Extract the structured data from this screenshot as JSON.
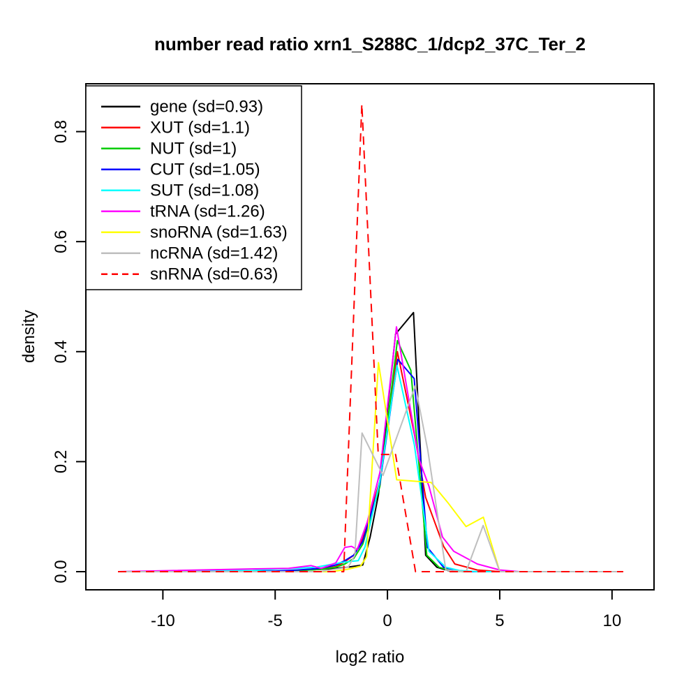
{
  "figure": {
    "background_color": "#FFFFFF",
    "title": "number read ratio xrn1_S288C_1/dcp2_37C_Ter_2",
    "xlabel": "log2 ratio",
    "ylabel": "density"
  },
  "chart_data": {
    "type": "line",
    "title": "number read ratio xrn1_S288C_1/dcp2_37C_Ter_2",
    "xlabel": "log2 ratio",
    "ylabel": "density",
    "grid": false,
    "legend_position": "top-left",
    "xlim": [
      -13.43,
      11.87
    ],
    "ylim": [
      -0.033,
      0.887
    ],
    "x_ticks": [
      {
        "value": -10,
        "label": "-10"
      },
      {
        "value": -5,
        "label": "-5"
      },
      {
        "value": 0,
        "label": "0"
      },
      {
        "value": 5,
        "label": "5"
      },
      {
        "value": 10,
        "label": "10"
      }
    ],
    "y_ticks": [
      {
        "value": 0.0,
        "label": "0.0"
      },
      {
        "value": 0.2,
        "label": "0.2"
      },
      {
        "value": 0.4,
        "label": "0.4"
      },
      {
        "value": 0.6,
        "label": "0.6"
      },
      {
        "value": 0.8,
        "label": "0.8"
      }
    ],
    "series": [
      {
        "name": "gene",
        "legend": "gene (sd=0.93)",
        "sd": 0.93,
        "color": "#000000",
        "dashed": false,
        "points": [
          [
            -12,
            0
          ],
          [
            -5,
            0
          ],
          [
            -4,
            0.002
          ],
          [
            -3,
            0.004
          ],
          [
            -2.3,
            0.006
          ],
          [
            -1.8,
            0.008
          ],
          [
            -1.1,
            0.012
          ],
          [
            -0.77,
            0.063
          ],
          [
            -0.4,
            0.14
          ],
          [
            0.36,
            0.432
          ],
          [
            1.16,
            0.471
          ],
          [
            1.7,
            0.03
          ],
          [
            2.2,
            0.008
          ],
          [
            2.7,
            0.002
          ],
          [
            3.5,
            0
          ],
          [
            10.5,
            0
          ]
        ]
      },
      {
        "name": "XUT",
        "legend": "XUT (sd=1.1)",
        "sd": 1.1,
        "color": "#FF0000",
        "dashed": false,
        "points": [
          [
            -12,
            0
          ],
          [
            -5,
            0
          ],
          [
            -4,
            0.002
          ],
          [
            -3,
            0.005
          ],
          [
            -2.3,
            0.009
          ],
          [
            -1.9,
            0.018
          ],
          [
            -1.5,
            0.03
          ],
          [
            -1.1,
            0.06
          ],
          [
            -0.34,
            0.165
          ],
          [
            0.44,
            0.4
          ],
          [
            1.2,
            0.25
          ],
          [
            1.7,
            0.135
          ],
          [
            2.5,
            0.046
          ],
          [
            3,
            0.014
          ],
          [
            4,
            0.003
          ],
          [
            5,
            0
          ],
          [
            10.5,
            0
          ]
        ]
      },
      {
        "name": "NUT",
        "legend": "NUT (sd=1)",
        "sd": 1,
        "color": "#00CD00",
        "dashed": false,
        "points": [
          [
            -12,
            0
          ],
          [
            -5,
            0
          ],
          [
            -4,
            0.002
          ],
          [
            -3,
            0.004
          ],
          [
            -2.3,
            0.008
          ],
          [
            -1.9,
            0.014
          ],
          [
            -1.5,
            0.024
          ],
          [
            -1.1,
            0.05
          ],
          [
            -0.34,
            0.155
          ],
          [
            0.44,
            0.42
          ],
          [
            1.04,
            0.366
          ],
          [
            1.75,
            0.03
          ],
          [
            2.3,
            0.008
          ],
          [
            2.8,
            0.002
          ],
          [
            3.5,
            0
          ],
          [
            10.5,
            0
          ]
        ]
      },
      {
        "name": "CUT",
        "legend": "CUT (sd=1.05)",
        "sd": 1.05,
        "color": "#0000FF",
        "dashed": false,
        "points": [
          [
            -12,
            0
          ],
          [
            -5,
            0.001
          ],
          [
            -4,
            0.003
          ],
          [
            -3,
            0.006
          ],
          [
            -2.3,
            0.012
          ],
          [
            -1.9,
            0.02
          ],
          [
            -1.5,
            0.03
          ],
          [
            -1.1,
            0.055
          ],
          [
            -0.34,
            0.16
          ],
          [
            0.46,
            0.386
          ],
          [
            1.19,
            0.351
          ],
          [
            1.78,
            0.044
          ],
          [
            2.5,
            0.008
          ],
          [
            3.1,
            0.002
          ],
          [
            3.8,
            0
          ],
          [
            10.5,
            0
          ]
        ]
      },
      {
        "name": "SUT",
        "legend": "SUT (sd=1.08)",
        "sd": 1.08,
        "color": "#00FFFF",
        "dashed": false,
        "points": [
          [
            -12,
            0
          ],
          [
            -6,
            0.002
          ],
          [
            -4.7,
            0.005
          ],
          [
            -3.2,
            0.008
          ],
          [
            -2,
            0.017
          ],
          [
            -1.3,
            0.02
          ],
          [
            -1,
            0.045
          ],
          [
            -0.34,
            0.165
          ],
          [
            0.42,
            0.375
          ],
          [
            1.2,
            0.23
          ],
          [
            1.85,
            0.037
          ],
          [
            2.6,
            0.008
          ],
          [
            3.2,
            0.002
          ],
          [
            4,
            0
          ],
          [
            10.5,
            0
          ]
        ]
      },
      {
        "name": "tRNA",
        "legend": "tRNA (sd=1.26)",
        "sd": 1.26,
        "color": "#FF00FF",
        "dashed": false,
        "points": [
          [
            -12,
            0
          ],
          [
            -6.1,
            0.005
          ],
          [
            -4.4,
            0.006
          ],
          [
            -3.4,
            0.011
          ],
          [
            -2.95,
            0.006
          ],
          [
            -2.3,
            0.016
          ],
          [
            -1.9,
            0.044
          ],
          [
            -1.6,
            0.046
          ],
          [
            -1.35,
            0.04
          ],
          [
            -0.9,
            0.09
          ],
          [
            -0.34,
            0.18
          ],
          [
            0.4,
            0.445
          ],
          [
            1.4,
            0.205
          ],
          [
            1.85,
            0.155
          ],
          [
            2.45,
            0.063
          ],
          [
            2.95,
            0.037
          ],
          [
            4,
            0.014
          ],
          [
            5,
            0.003
          ],
          [
            5.9,
            0
          ],
          [
            10.5,
            0
          ]
        ]
      },
      {
        "name": "snoRNA",
        "legend": "snoRNA (sd=1.63)",
        "sd": 1.63,
        "color": "#FFFF00",
        "dashed": false,
        "points": [
          [
            -12,
            0
          ],
          [
            -2.5,
            0
          ],
          [
            -1.8,
            0.004
          ],
          [
            -1.2,
            0.01
          ],
          [
            -0.93,
            0.027
          ],
          [
            -0.4,
            0.38
          ],
          [
            0.41,
            0.167
          ],
          [
            1.95,
            0.162
          ],
          [
            2.68,
            0.126
          ],
          [
            3.5,
            0.082
          ],
          [
            4.27,
            0.099
          ],
          [
            5,
            0
          ],
          [
            10.5,
            0
          ]
        ]
      },
      {
        "name": "ncRNA",
        "legend": "ncRNA (sd=1.42)",
        "sd": 1.42,
        "color": "#BEBEBE",
        "dashed": false,
        "points": [
          [
            -12,
            0
          ],
          [
            -3,
            0
          ],
          [
            -2.4,
            0.004
          ],
          [
            -1.75,
            0.008
          ],
          [
            -1.45,
            0.03
          ],
          [
            -1.13,
            0.252
          ],
          [
            -0.2,
            0.175
          ],
          [
            1.24,
            0.338
          ],
          [
            1.8,
            0.22
          ],
          [
            2.6,
            0.003
          ],
          [
            3.5,
            0
          ],
          [
            4.26,
            0.084
          ],
          [
            5,
            0
          ],
          [
            10.5,
            0
          ]
        ]
      },
      {
        "name": "snRNA",
        "legend": "snRNA (sd=0.63)",
        "sd": 0.63,
        "color": "#FF0000",
        "dashed": true,
        "points": [
          [
            -12,
            0
          ],
          [
            -1.95,
            0
          ],
          [
            -1.14,
            0.85
          ],
          [
            -0.41,
            0.213
          ],
          [
            0.36,
            0.213
          ],
          [
            1.25,
            0
          ],
          [
            10.5,
            0
          ]
        ]
      }
    ]
  }
}
